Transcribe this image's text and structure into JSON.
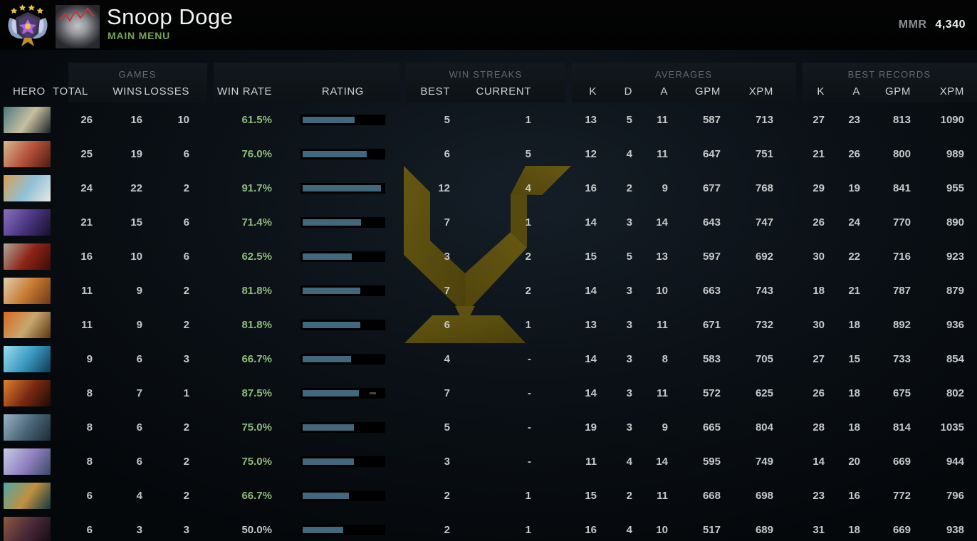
{
  "topbar": {
    "player_name": "Snoop Doge",
    "menu_label": "MAIN MENU",
    "mmr_label": "MMR",
    "mmr_value": "4,340",
    "medal_stars": 4
  },
  "table": {
    "hero_header": "HERO",
    "groups": {
      "games": "GAMES",
      "win_streaks": "WIN STREAKS",
      "averages": "AVERAGES",
      "best_records": "BEST RECORDS"
    },
    "columns": {
      "total": "TOTAL",
      "wins": "WINS",
      "losses": "LOSSES",
      "win_rate": "WIN RATE",
      "rating": "RATING",
      "best": "BEST",
      "current": "CURRENT",
      "avg_k": "K",
      "avg_d": "D",
      "avg_a": "A",
      "avg_gpm": "GPM",
      "avg_xpm": "XPM",
      "rec_k": "K",
      "rec_a": "A",
      "rec_gpm": "GPM",
      "rec_xpm": "XPM"
    },
    "rows": [
      {
        "total": "26",
        "wins": "16",
        "losses": "10",
        "win_rate": "61.5%",
        "neutral": false,
        "rating_fill": 0.645,
        "streak_best": "5",
        "streak_current": "1",
        "avg_k": "13",
        "avg_d": "5",
        "avg_a": "11",
        "avg_gpm": "587",
        "avg_xpm": "713",
        "rec_k": "27",
        "rec_a": "23",
        "rec_gpm": "813",
        "rec_xpm": "1090",
        "icon_colors": [
          "#4a7a7f",
          "#c8bfa0",
          "#1a2228"
        ]
      },
      {
        "total": "25",
        "wins": "19",
        "losses": "6",
        "win_rate": "76.0%",
        "neutral": false,
        "rating_fill": 0.8,
        "streak_best": "6",
        "streak_current": "5",
        "avg_k": "12",
        "avg_d": "4",
        "avg_a": "11",
        "avg_gpm": "647",
        "avg_xpm": "751",
        "rec_k": "21",
        "rec_a": "26",
        "rec_gpm": "800",
        "rec_xpm": "989",
        "icon_colors": [
          "#d8b890",
          "#b5503a",
          "#4a1c12"
        ]
      },
      {
        "total": "24",
        "wins": "22",
        "losses": "2",
        "win_rate": "91.7%",
        "neutral": false,
        "rating_fill": 0.97,
        "streak_best": "12",
        "streak_current": "4",
        "avg_k": "16",
        "avg_d": "2",
        "avg_a": "9",
        "avg_gpm": "677",
        "avg_xpm": "768",
        "rec_k": "29",
        "rec_a": "19",
        "rec_gpm": "841",
        "rec_xpm": "955",
        "icon_colors": [
          "#d8a050",
          "#8fc0d8",
          "#e8e8e0"
        ]
      },
      {
        "total": "21",
        "wins": "15",
        "losses": "6",
        "win_rate": "71.4%",
        "neutral": false,
        "rating_fill": 0.725,
        "streak_best": "7",
        "streak_current": "1",
        "avg_k": "14",
        "avg_d": "3",
        "avg_a": "14",
        "avg_gpm": "643",
        "avg_xpm": "747",
        "rec_k": "26",
        "rec_a": "24",
        "rec_gpm": "770",
        "rec_xpm": "890",
        "icon_colors": [
          "#8a70c0",
          "#4a3580",
          "#15102a"
        ]
      },
      {
        "total": "16",
        "wins": "10",
        "losses": "6",
        "win_rate": "62.5%",
        "neutral": false,
        "rating_fill": 0.61,
        "streak_best": "3",
        "streak_current": "2",
        "avg_k": "15",
        "avg_d": "5",
        "avg_a": "13",
        "avg_gpm": "597",
        "avg_xpm": "692",
        "rec_k": "30",
        "rec_a": "22",
        "rec_gpm": "716",
        "rec_xpm": "923",
        "icon_colors": [
          "#b0a898",
          "#8e2418",
          "#3a0d08"
        ]
      },
      {
        "total": "11",
        "wins": "9",
        "losses": "2",
        "win_rate": "81.8%",
        "neutral": false,
        "rating_fill": 0.715,
        "streak_best": "7",
        "streak_current": "2",
        "avg_k": "14",
        "avg_d": "3",
        "avg_a": "10",
        "avg_gpm": "663",
        "avg_xpm": "743",
        "rec_k": "18",
        "rec_a": "21",
        "rec_gpm": "787",
        "rec_xpm": "879",
        "icon_colors": [
          "#e0d0b0",
          "#c87830",
          "#6a3a18"
        ]
      },
      {
        "total": "11",
        "wins": "9",
        "losses": "2",
        "win_rate": "81.8%",
        "neutral": false,
        "rating_fill": 0.72,
        "streak_best": "6",
        "streak_current": "1",
        "avg_k": "13",
        "avg_d": "3",
        "avg_a": "11",
        "avg_gpm": "671",
        "avg_xpm": "732",
        "rec_k": "30",
        "rec_a": "18",
        "rec_gpm": "892",
        "rec_xpm": "936",
        "icon_colors": [
          "#d86820",
          "#c8a870",
          "#5a3510"
        ]
      },
      {
        "total": "9",
        "wins": "6",
        "losses": "3",
        "win_rate": "66.7%",
        "neutral": false,
        "rating_fill": 0.605,
        "streak_best": "4",
        "streak_current": "-",
        "avg_k": "14",
        "avg_d": "3",
        "avg_a": "8",
        "avg_gpm": "583",
        "avg_xpm": "705",
        "rec_k": "27",
        "rec_a": "15",
        "rec_gpm": "733",
        "rec_xpm": "854",
        "icon_colors": [
          "#9adef0",
          "#3a98c0",
          "#0d3952"
        ]
      },
      {
        "total": "8",
        "wins": "7",
        "losses": "1",
        "win_rate": "87.5%",
        "neutral": false,
        "rating_fill": 0.7,
        "rating_tick": 0.83,
        "streak_best": "7",
        "streak_current": "-",
        "avg_k": "14",
        "avg_d": "3",
        "avg_a": "11",
        "avg_gpm": "572",
        "avg_xpm": "625",
        "rec_k": "26",
        "rec_a": "18",
        "rec_gpm": "675",
        "rec_xpm": "802",
        "icon_colors": [
          "#e08030",
          "#7a2a12",
          "#200a05"
        ]
      },
      {
        "total": "8",
        "wins": "6",
        "losses": "2",
        "win_rate": "75.0%",
        "neutral": false,
        "rating_fill": 0.64,
        "streak_best": "5",
        "streak_current": "-",
        "avg_k": "19",
        "avg_d": "3",
        "avg_a": "9",
        "avg_gpm": "665",
        "avg_xpm": "804",
        "rec_k": "28",
        "rec_a": "18",
        "rec_gpm": "814",
        "rec_xpm": "1035",
        "icon_colors": [
          "#9ab4c4",
          "#4a6578",
          "#1c2a36"
        ]
      },
      {
        "total": "8",
        "wins": "6",
        "losses": "2",
        "win_rate": "75.0%",
        "neutral": false,
        "rating_fill": 0.64,
        "streak_best": "3",
        "streak_current": "-",
        "avg_k": "11",
        "avg_d": "4",
        "avg_a": "14",
        "avg_gpm": "595",
        "avg_xpm": "749",
        "rec_k": "14",
        "rec_a": "20",
        "rec_gpm": "669",
        "rec_xpm": "944",
        "icon_colors": [
          "#c8cce8",
          "#9080c0",
          "#3a4868"
        ]
      },
      {
        "total": "6",
        "wins": "4",
        "losses": "2",
        "win_rate": "66.7%",
        "neutral": false,
        "rating_fill": 0.575,
        "streak_best": "2",
        "streak_current": "1",
        "avg_k": "15",
        "avg_d": "2",
        "avg_a": "11",
        "avg_gpm": "668",
        "avg_xpm": "698",
        "rec_k": "23",
        "rec_a": "16",
        "rec_gpm": "772",
        "rec_xpm": "796",
        "icon_colors": [
          "#50a8a8",
          "#c09040",
          "#123840"
        ]
      },
      {
        "total": "6",
        "wins": "3",
        "losses": "3",
        "win_rate": "50.0%",
        "neutral": true,
        "rating_fill": 0.5,
        "streak_best": "2",
        "streak_current": "1",
        "avg_k": "16",
        "avg_d": "4",
        "avg_a": "10",
        "avg_gpm": "517",
        "avg_xpm": "689",
        "rec_k": "31",
        "rec_a": "18",
        "rec_gpm": "669",
        "rec_xpm": "938",
        "icon_colors": [
          "#8a5a40",
          "#4a2838",
          "#140a12"
        ]
      }
    ]
  },
  "colors": {
    "accent_green": "#8fbc7d",
    "menu_green": "#76a455",
    "bar_fill": "#41687c",
    "bar_track": "#000000",
    "gold_light": "#6e5e11",
    "gold_dark": "#51450b"
  }
}
